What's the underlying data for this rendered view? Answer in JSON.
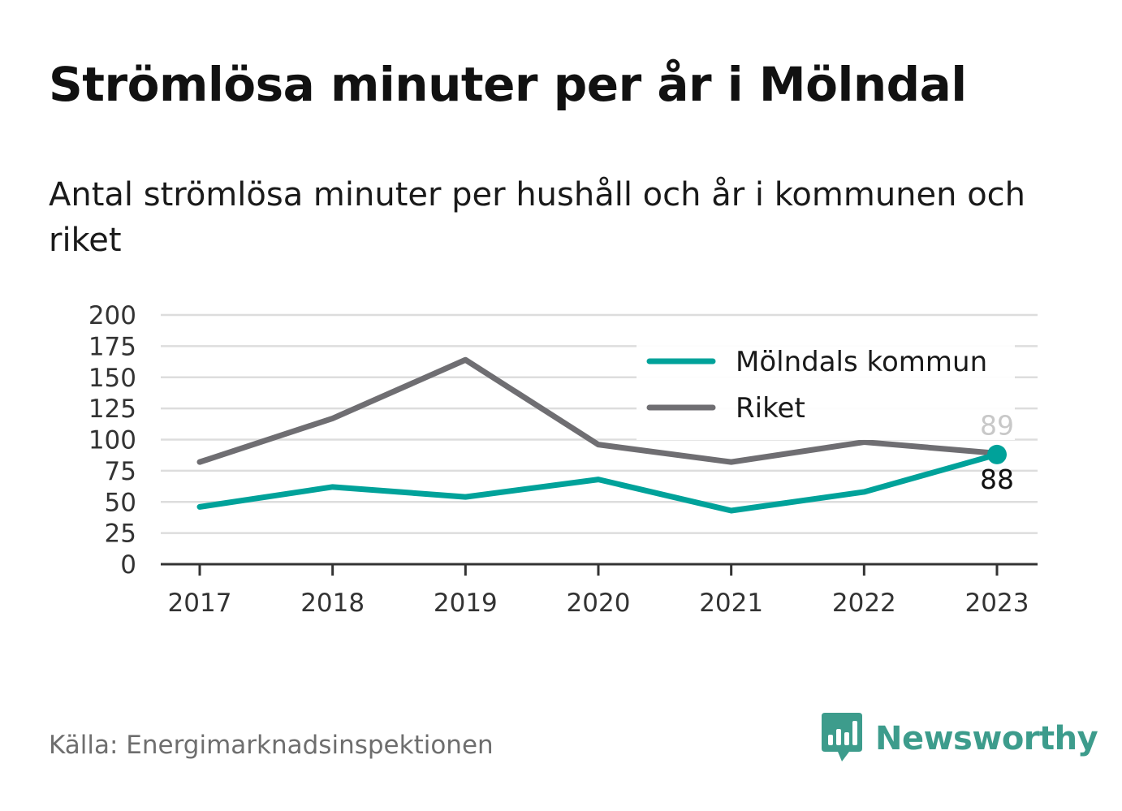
{
  "title": "Strömlösa minuter per år i Mölndal",
  "subtitle": "Antal strömlösa minuter per hushåll och år i kommunen och riket",
  "source": "Källa: Energimarknadsinspektionen",
  "brand": {
    "name": "Newsworthy",
    "icon": "newsworthy-logo-icon",
    "color": "#3d9c8c"
  },
  "colors": {
    "accent": "#00a29a",
    "secondary": "#6f6e72",
    "grid": "#dddddd",
    "axis": "#333333"
  },
  "chart_data": {
    "type": "line",
    "x": [
      "2017",
      "2018",
      "2019",
      "2020",
      "2021",
      "2022",
      "2023"
    ],
    "yticks": [
      "0",
      "25",
      "50",
      "75",
      "100",
      "125",
      "150",
      "175",
      "200"
    ],
    "ylim": [
      0,
      200
    ],
    "grid": true,
    "legend_position": "top-right",
    "series": [
      {
        "name": "Mölndals kommun",
        "color": "#00a29a",
        "values": [
          46,
          62,
          54,
          68,
          43,
          58,
          88
        ],
        "end_label": "88"
      },
      {
        "name": "Riket",
        "color": "#6f6e72",
        "values": [
          82,
          117,
          164,
          96,
          82,
          98,
          89
        ],
        "end_label": "89"
      }
    ]
  }
}
